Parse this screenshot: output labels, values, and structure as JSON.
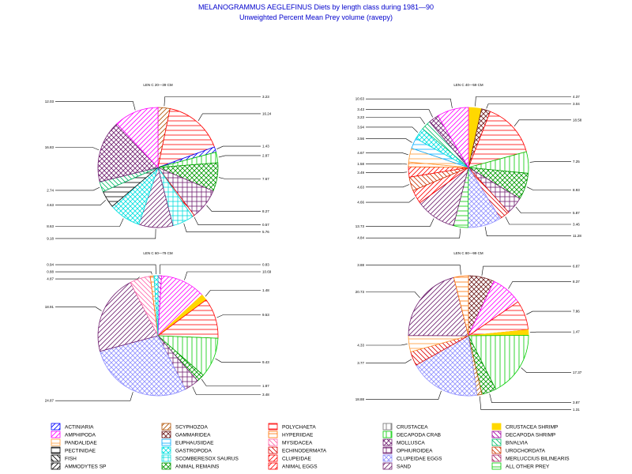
{
  "title": "MELANOGRAMMUS AEGLEFINUS Diets by length class during 1981—90",
  "subtitle": "Unweighted Percent Mean Prey volume (ravepy)",
  "chart_data": {
    "type": "pie",
    "charts": [
      {
        "label": "LEN C 20—39 CM",
        "slices": [
          {
            "category": "SCYPHOZOA",
            "value": 3.23,
            "label": "3.23"
          },
          {
            "category": "POLYCHAETA",
            "value": 16.24,
            "label": "16.24"
          },
          {
            "category": "ACTINIARIA",
            "value": 1.43,
            "label": "1.43"
          },
          {
            "category": "DECAPODA CRAB",
            "value": 2.87,
            "label": "2.87"
          },
          {
            "category": "ANIMAL REMAINS",
            "value": 7.67,
            "label": "7.67"
          },
          {
            "category": "OPHIUROIDEA",
            "value": 8.27,
            "label": "8.27"
          },
          {
            "category": "ECHINODERMATA",
            "value": 0.57,
            "label": "0.57"
          },
          {
            "category": "SCOMBERESOX SAURUS",
            "value": 5.76,
            "label": "5.76"
          },
          {
            "category": "SAND",
            "value": 9.18,
            "label": "9.18"
          },
          {
            "category": "GASTROPODA",
            "value": 8.63,
            "label": "8.63"
          },
          {
            "category": "PECTINIDAE",
            "value": 4.63,
            "label": "4.63"
          },
          {
            "category": "BIVALVIA",
            "value": 2.74,
            "label": "2.74"
          },
          {
            "category": "MOLLUSCA",
            "value": 16.83,
            "label": "16.83"
          },
          {
            "category": "AMPHIPODA",
            "value": 12.03,
            "label": "12.03"
          }
        ]
      },
      {
        "label": "LEN C 40—59 CM",
        "slices": [
          {
            "category": "CRUSTACEA SHRIMP",
            "value": 4.37,
            "label": "4.37"
          },
          {
            "category": "GAMMARIDEA",
            "value": 3.04,
            "label": "3.04"
          },
          {
            "category": "POLYCHAETA",
            "value": 18.58,
            "label": "18.58"
          },
          {
            "category": "DECAPODA CRAB",
            "value": 7.25,
            "label": "7.25"
          },
          {
            "category": "ANIMAL REMAINS",
            "value": 8.93,
            "label": "8.93"
          },
          {
            "category": "OPHIUROIDEA",
            "value": 5.87,
            "label": "5.87"
          },
          {
            "category": "ECHINODERMATA",
            "value": 3.46,
            "label": "3.46"
          },
          {
            "category": "CLUPEIDAE EGGS",
            "value": 11.28,
            "label": "11.28"
          },
          {
            "category": "ALL OTHER PREY",
            "value": 4.84,
            "label": "4.84"
          },
          {
            "category": "SAND",
            "value": 13.73,
            "label": "13.73"
          },
          {
            "category": "ANIMAL EGGS",
            "value": 4.66,
            "label": "4.66"
          },
          {
            "category": "UROCHORDATA",
            "value": 4.63,
            "label": "4.63"
          },
          {
            "category": "CLUPEIDAE",
            "value": 3.49,
            "label": "3.49"
          },
          {
            "category": "HYPERIIDAE",
            "value": 1.58,
            "label": "1.58"
          },
          {
            "category": "PANDALIDAE",
            "value": 4.67,
            "label": "4.67"
          },
          {
            "category": "EUPHAUSIIDAE",
            "value": 3.56,
            "label": "3.56"
          },
          {
            "category": "GASTROPODA",
            "value": 3.94,
            "label": "3.94"
          },
          {
            "category": "BIVALVIA",
            "value": 3.23,
            "label": "3.23"
          },
          {
            "category": "MOLLUSCA",
            "value": 3.43,
            "label": "3.43"
          },
          {
            "category": "AMPHIPODA",
            "value": 10.63,
            "label": "10.63"
          }
        ]
      },
      {
        "label": "LEN C 60—79 CM",
        "slices": [
          {
            "category": "DECAPODA SHRIMP",
            "value": 0.83,
            "label": "0.83"
          },
          {
            "category": "AMPHIPODA",
            "value": 10.69,
            "label": "10.69"
          },
          {
            "category": "CRUSTACEA SHRIMP",
            "value": 1.48,
            "label": "1.48"
          },
          {
            "category": "POLYCHAETA",
            "value": 9.53,
            "label": "9.53"
          },
          {
            "category": "DECAPODA CRAB",
            "value": 9.43,
            "label": "9.43"
          },
          {
            "category": "ANIMAL REMAINS",
            "value": 1.87,
            "label": "1.87"
          },
          {
            "category": "OPHIUROIDEA",
            "value": 3.48,
            "label": "3.48"
          },
          {
            "category": "CLUPEIDAE EGGS",
            "value": 24.87,
            "label": "24.87"
          },
          {
            "category": "SAND",
            "value": 18.91,
            "label": "18.91"
          },
          {
            "category": "MYSIDACEA",
            "value": 4.87,
            "label": "4.87"
          },
          {
            "category": "HYPERIIDAE",
            "value": 0.88,
            "label": "0.88"
          },
          {
            "category": "GASTROPODA",
            "value": 0.94,
            "label": "0.94"
          }
        ]
      },
      {
        "label": "LEN C 80—99 CM",
        "slices": [
          {
            "category": "GAMMARIDEA",
            "value": 6.87,
            "label": "6.87"
          },
          {
            "category": "AMPHIPODA",
            "value": 8.37,
            "label": "8.37"
          },
          {
            "category": "POLYCHAETA",
            "value": 7.86,
            "label": "7.86"
          },
          {
            "category": "CRUSTACEA SHRIMP",
            "value": 1.47,
            "label": "1.47"
          },
          {
            "category": "DECAPODA CRAB",
            "value": 17.37,
            "label": "17.37"
          },
          {
            "category": "ANIMAL REMAINS",
            "value": 3.87,
            "label": "3.87"
          },
          {
            "category": "SCYPHOZOA",
            "value": 1.31,
            "label": "1.31"
          },
          {
            "category": "CLUPEIDAE EGGS",
            "value": 18.88,
            "label": "18.88"
          },
          {
            "category": "ECHINODERMATA",
            "value": 3.77,
            "label": "3.77"
          },
          {
            "category": "PANDALIDAE",
            "value": 4.33,
            "label": "4.33"
          },
          {
            "category": "SAND",
            "value": 20.73,
            "label": "20.73"
          },
          {
            "category": "HYPERIIDAE",
            "value": 3.88,
            "label": "3.88"
          }
        ]
      }
    ],
    "legend": [
      {
        "name": "ACTINIARIA",
        "color": "#0000ff",
        "pattern": "diag-ur"
      },
      {
        "name": "SCYPHOZOA",
        "color": "#b05000",
        "pattern": "diag-ur"
      },
      {
        "name": "POLYCHAETA",
        "color": "#ff0000",
        "pattern": "horiz"
      },
      {
        "name": "CRUSTACEA",
        "color": "#707070",
        "pattern": "vert"
      },
      {
        "name": "CRUSTACEA SHRIMP",
        "color": "#ffd800",
        "pattern": "solid"
      },
      {
        "name": "AMPHIPODA",
        "color": "#ff00ff",
        "pattern": "diag-ur"
      },
      {
        "name": "GAMMARIDEA",
        "color": "#6b1a1a",
        "pattern": "cross-diag"
      },
      {
        "name": "HYPERIIDAE",
        "color": "#ff7000",
        "pattern": "horiz"
      },
      {
        "name": "DECAPODA CRAB",
        "color": "#00cc00",
        "pattern": "vert"
      },
      {
        "name": "DECAPODA SHRIMP",
        "color": "#a000a0",
        "pattern": "diag-ul"
      },
      {
        "name": "PANDALIDAE",
        "color": "#ff9933",
        "pattern": "horiz"
      },
      {
        "name": "EUPHAUSIIDAE",
        "color": "#00aaff",
        "pattern": "horiz"
      },
      {
        "name": "MYSIDACEA",
        "color": "#ff66aa",
        "pattern": "diag-ul"
      },
      {
        "name": "MOLLUSCA",
        "color": "#702070",
        "pattern": "cross-diag"
      },
      {
        "name": "BIVALVIA",
        "color": "#00bb66",
        "pattern": "diag-ul"
      },
      {
        "name": "PECTINIDAE",
        "color": "#000000",
        "pattern": "horiz"
      },
      {
        "name": "GASTROPODA",
        "color": "#00e0e0",
        "pattern": "cross-diag"
      },
      {
        "name": "ECHINODERMATA",
        "color": "#dd0000",
        "pattern": "diag-ul"
      },
      {
        "name": "OPHIUROIDEA",
        "color": "#702070",
        "pattern": "grid"
      },
      {
        "name": "UROCHORDATA",
        "color": "#cc3300",
        "pattern": "diag-ul"
      },
      {
        "name": "FISH",
        "color": "#000000",
        "pattern": "diag-ul"
      },
      {
        "name": "SCOMBERESOX SAURUS",
        "color": "#00dddd",
        "pattern": "grid"
      },
      {
        "name": "CLUPEIDAE",
        "color": "#ff0000",
        "pattern": "diag-ur"
      },
      {
        "name": "CLUPEIDAE EGGS",
        "color": "#9090ff",
        "pattern": "cross-diag"
      },
      {
        "name": "MERLUCCIUS BILINEARIS",
        "color": "#aa2266",
        "pattern": "diag-ul"
      },
      {
        "name": "AMMODYTES SP",
        "color": "#000000",
        "pattern": "diag-ur"
      },
      {
        "name": "ANIMAL REMAINS",
        "color": "#009900",
        "pattern": "cross-diag"
      },
      {
        "name": "ANIMAL EGGS",
        "color": "#ff0000",
        "pattern": "diag-ur"
      },
      {
        "name": "SAND",
        "color": "#702070",
        "pattern": "diag-ur"
      },
      {
        "name": "ALL OTHER PREY",
        "color": "#00cc00",
        "pattern": "horiz"
      }
    ]
  }
}
